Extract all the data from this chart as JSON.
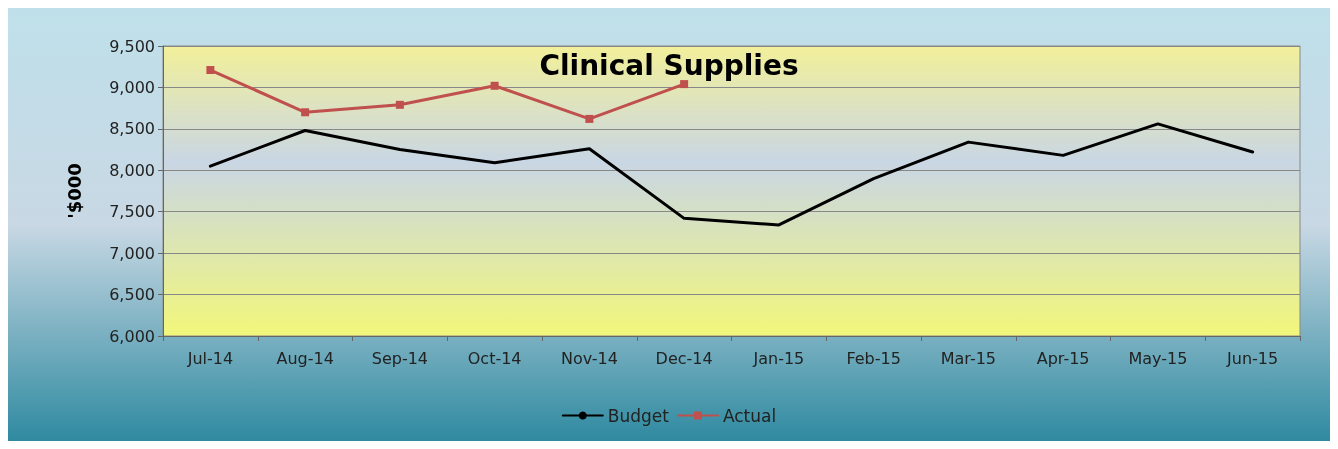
{
  "chart_data": {
    "type": "line",
    "title": "Clinical Supplies",
    "ylabel": "'$000",
    "categories": [
      "Jul-14",
      "Aug-14",
      "Sep-14",
      "Oct-14",
      "Nov-14",
      "Dec-14",
      "Jan-15",
      "Feb-15",
      "Mar-15",
      "Apr-15",
      "May-15",
      "Jun-15"
    ],
    "series": [
      {
        "name": "Budget",
        "color": "#000000",
        "marker": "none",
        "values": [
          8050,
          8480,
          8250,
          8090,
          8260,
          7420,
          7340,
          7900,
          8340,
          8180,
          8560,
          8220
        ]
      },
      {
        "name": "Actual",
        "color": "#c0504d",
        "marker": "square",
        "values": [
          9210,
          8700,
          8790,
          9020,
          8620,
          9040,
          null,
          null,
          null,
          null,
          null,
          null
        ]
      }
    ],
    "ylim": [
      6000,
      9500
    ],
    "yticks": [
      {
        "value": 6000,
        "label": "6,000"
      },
      {
        "value": 6500,
        "label": "6,500"
      },
      {
        "value": 7000,
        "label": "7,000"
      },
      {
        "value": 7500,
        "label": "7,500"
      },
      {
        "value": 8000,
        "label": "8,000"
      },
      {
        "value": 8500,
        "label": "8,500"
      },
      {
        "value": 9000,
        "label": "9,000"
      },
      {
        "value": 9500,
        "label": "9,500"
      }
    ],
    "grid": "y",
    "legend": "bottom",
    "line_style": "solid"
  }
}
